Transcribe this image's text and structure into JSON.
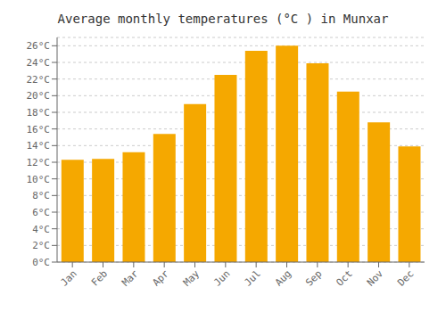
{
  "chart_data": {
    "type": "bar",
    "title": "Average monthly temperatures (°C ) in Munxar",
    "categories": [
      "Jan",
      "Feb",
      "Mar",
      "Apr",
      "May",
      "Jun",
      "Jul",
      "Aug",
      "Sep",
      "Oct",
      "Nov",
      "Dec"
    ],
    "values": [
      12.3,
      12.4,
      13.2,
      15.4,
      19.0,
      22.5,
      25.4,
      26.0,
      23.9,
      20.5,
      16.8,
      13.9
    ],
    "color": "#F5A800",
    "ylim": [
      0,
      27
    ],
    "yticks": [
      {
        "value": 0,
        "label": "0°C"
      },
      {
        "value": 2,
        "label": "2°C"
      },
      {
        "value": 4,
        "label": "4°C"
      },
      {
        "value": 6,
        "label": "6°C"
      },
      {
        "value": 8,
        "label": "8°C"
      },
      {
        "value": 10,
        "label": "10°C"
      },
      {
        "value": 12,
        "label": "12°C"
      },
      {
        "value": 14,
        "label": "14°C"
      },
      {
        "value": 16,
        "label": "16°C"
      },
      {
        "value": 18,
        "label": "18°C"
      },
      {
        "value": 20,
        "label": "20°C"
      },
      {
        "value": 22,
        "label": "22°C"
      },
      {
        "value": 24,
        "label": "24°C"
      },
      {
        "value": 26,
        "label": "26°C"
      }
    ],
    "grid": true
  }
}
